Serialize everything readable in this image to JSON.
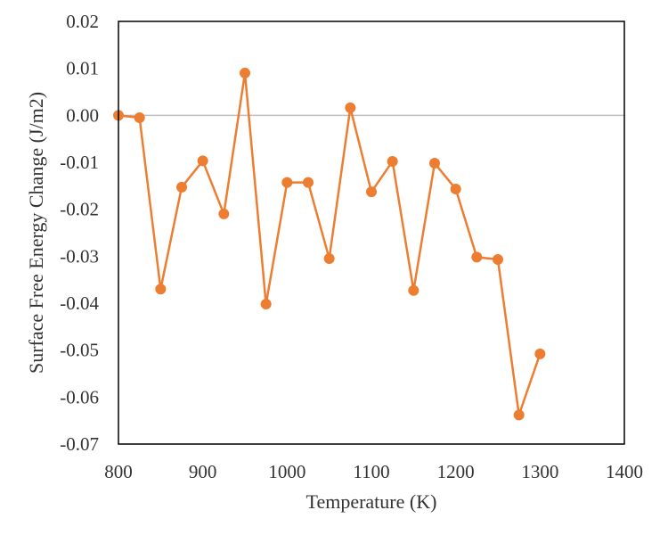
{
  "chart_data": {
    "type": "line",
    "title": "",
    "xlabel": "Temperature (K)",
    "ylabel": "Surface Free Energy Change (J/m2)",
    "xlim": [
      800,
      1400
    ],
    "ylim": [
      -0.07,
      0.02
    ],
    "x_ticks": [
      800,
      900,
      1000,
      1100,
      1200,
      1300,
      1400
    ],
    "x_tick_labels": [
      "800",
      "900",
      "1000",
      "1100",
      "1200",
      "1300",
      "1400"
    ],
    "y_ticks": [
      0.02,
      0.01,
      0.0,
      -0.01,
      -0.02,
      -0.03,
      -0.04,
      -0.05,
      -0.06,
      -0.07
    ],
    "y_tick_labels": [
      "0.02",
      "0.01",
      "0.00",
      "-0.01",
      "-0.02",
      "-0.03",
      "-0.04",
      "-0.05",
      "-0.06",
      "-0.07"
    ],
    "grid": false,
    "legend": "none",
    "series": [
      {
        "color": "#ED7D31",
        "marker": "circle",
        "points": [
          {
            "x": 800,
            "y": 0.0
          },
          {
            "x": 825,
            "y": -0.0005
          },
          {
            "x": 850,
            "y": -0.037
          },
          {
            "x": 875,
            "y": -0.0153
          },
          {
            "x": 900,
            "y": -0.0097
          },
          {
            "x": 925,
            "y": -0.021
          },
          {
            "x": 950,
            "y": 0.009
          },
          {
            "x": 975,
            "y": -0.0402
          },
          {
            "x": 1000,
            "y": -0.0143
          },
          {
            "x": 1025,
            "y": -0.0143
          },
          {
            "x": 1050,
            "y": -0.0305
          },
          {
            "x": 1075,
            "y": 0.0016
          },
          {
            "x": 1100,
            "y": -0.0163
          },
          {
            "x": 1125,
            "y": -0.0098
          },
          {
            "x": 1150,
            "y": -0.0373
          },
          {
            "x": 1175,
            "y": -0.0102
          },
          {
            "x": 1200,
            "y": -0.0157
          },
          {
            "x": 1225,
            "y": -0.0302
          },
          {
            "x": 1250,
            "y": -0.0307
          },
          {
            "x": 1275,
            "y": -0.0638
          },
          {
            "x": 1300,
            "y": -0.0508
          }
        ]
      }
    ],
    "colors": {
      "series": "#ED7D31",
      "axis": "#000000",
      "zero_line": "#BFBFBF",
      "text": "#333333"
    }
  }
}
